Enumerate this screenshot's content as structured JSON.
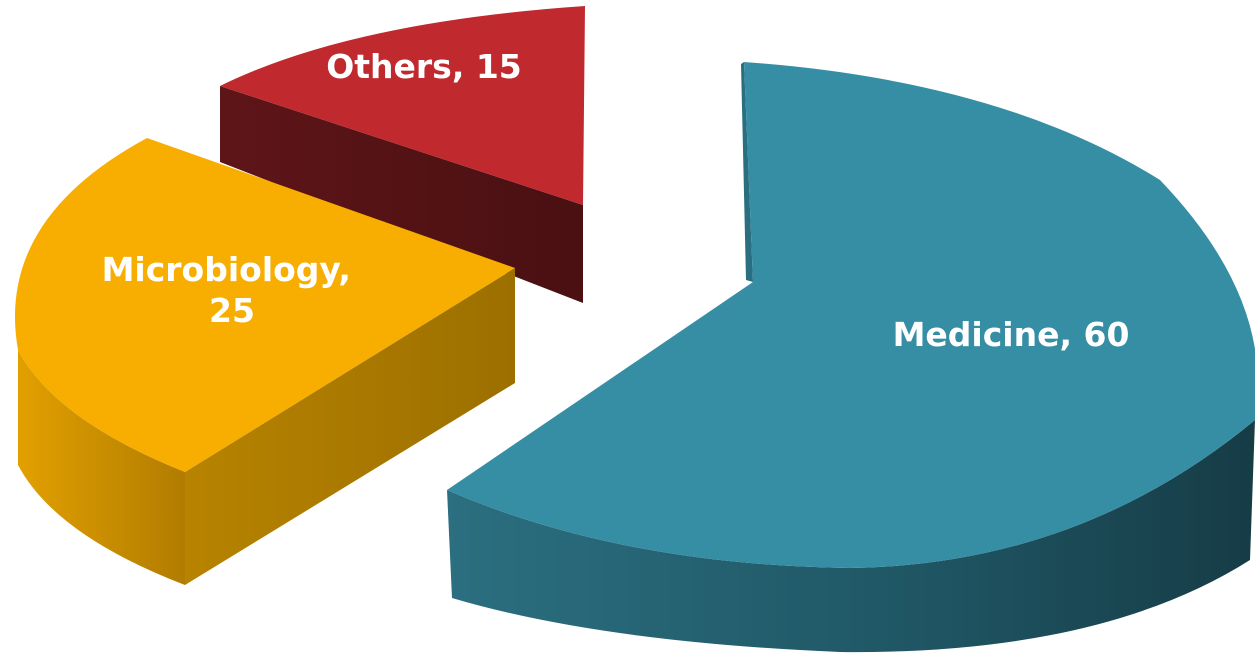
{
  "chart_data": {
    "type": "pie",
    "title": "",
    "slices": [
      {
        "name": "Medicine",
        "value": 60,
        "label": "Medicine, 60",
        "color": "#368ea4"
      },
      {
        "name": "Microbiology",
        "value": 25,
        "label_lines": [
          "Microbiology,",
          "25"
        ],
        "color": "#f7ae00"
      },
      {
        "name": "Others",
        "value": 15,
        "label": "Others, 15",
        "color": "#c0292e"
      }
    ],
    "style": "3d-exploded",
    "legend": "none"
  }
}
